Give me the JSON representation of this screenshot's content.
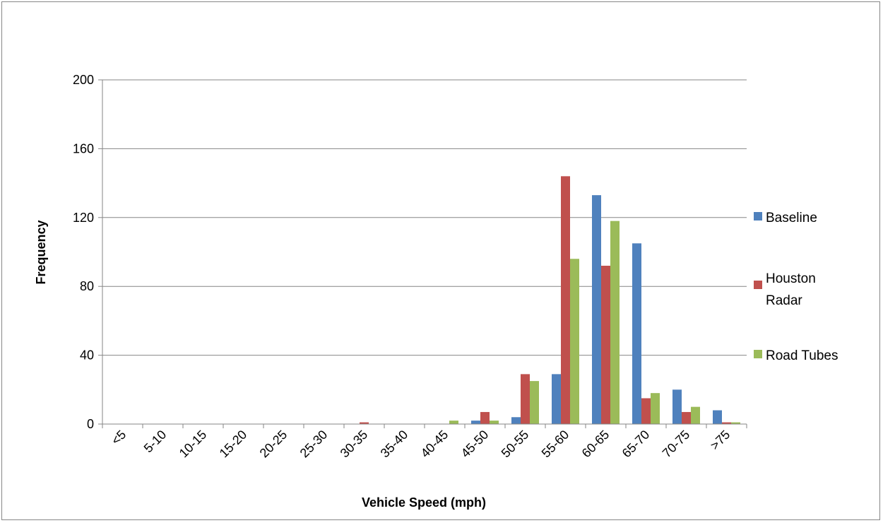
{
  "chart_data": {
    "type": "bar",
    "title": "",
    "xlabel": "Vehicle Speed (mph)",
    "ylabel": "Frequency",
    "ylim": [
      0,
      200
    ],
    "yticks": [
      0,
      40,
      80,
      120,
      160,
      200
    ],
    "grid": "horizontal",
    "legend_position": "right",
    "categories": [
      "<5",
      "5-10",
      "10-15",
      "15-20",
      "20-25",
      "25-30",
      "30-35",
      "35-40",
      "40-45",
      "45-50",
      "50-55",
      "55-60",
      "60-65",
      "65-70",
      "70-75",
      ">75"
    ],
    "series": [
      {
        "name": "Baseline",
        "color": "#4f81bd",
        "values": [
          0,
          0,
          0,
          0,
          0,
          0,
          0,
          0,
          0,
          2,
          4,
          29,
          133,
          105,
          20,
          8
        ]
      },
      {
        "name": "Houston Radar",
        "color": "#c0504d",
        "values": [
          0,
          0,
          0,
          0,
          0,
          0,
          1,
          0,
          0,
          7,
          29,
          144,
          92,
          15,
          7,
          1
        ]
      },
      {
        "name": "Road Tubes",
        "color": "#9bbb59",
        "values": [
          0,
          0,
          0,
          0,
          0,
          0,
          0,
          0,
          2,
          2,
          25,
          96,
          118,
          18,
          10,
          1
        ]
      }
    ]
  }
}
